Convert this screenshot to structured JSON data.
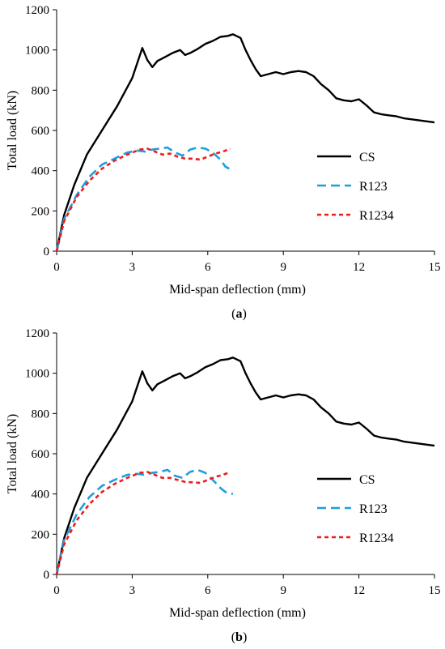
{
  "chart_data": [
    {
      "type": "line",
      "caption": "(a)",
      "caption_letter": "a",
      "xlabel": "Mid-span deflection (mm)",
      "ylabel": "Total load (kN)",
      "xlim": [
        0,
        15
      ],
      "ylim": [
        0,
        1200
      ],
      "xticks": [
        0,
        3,
        6,
        9,
        12,
        15
      ],
      "yticks": [
        0,
        200,
        400,
        600,
        800,
        1000,
        1200
      ],
      "grid": false,
      "legend_position": "right",
      "series": [
        {
          "name": "CS",
          "color": "#000000",
          "style": "solid",
          "points": [
            [
              0,
              0
            ],
            [
              0.3,
              180
            ],
            [
              0.7,
              330
            ],
            [
              1.2,
              480
            ],
            [
              1.8,
              600
            ],
            [
              2.4,
              720
            ],
            [
              3.0,
              860
            ],
            [
              3.4,
              1010
            ],
            [
              3.6,
              950
            ],
            [
              3.8,
              915
            ],
            [
              4.0,
              945
            ],
            [
              4.3,
              965
            ],
            [
              4.6,
              985
            ],
            [
              4.9,
              1000
            ],
            [
              5.1,
              975
            ],
            [
              5.3,
              985
            ],
            [
              5.6,
              1005
            ],
            [
              5.9,
              1030
            ],
            [
              6.2,
              1045
            ],
            [
              6.5,
              1065
            ],
            [
              6.8,
              1070
            ],
            [
              7.0,
              1078
            ],
            [
              7.3,
              1060
            ],
            [
              7.5,
              1000
            ],
            [
              7.7,
              950
            ],
            [
              7.9,
              905
            ],
            [
              8.1,
              870
            ],
            [
              8.4,
              880
            ],
            [
              8.7,
              890
            ],
            [
              9.0,
              880
            ],
            [
              9.3,
              890
            ],
            [
              9.6,
              895
            ],
            [
              9.9,
              890
            ],
            [
              10.2,
              870
            ],
            [
              10.5,
              830
            ],
            [
              10.8,
              800
            ],
            [
              11.1,
              760
            ],
            [
              11.4,
              750
            ],
            [
              11.7,
              745
            ],
            [
              12.0,
              755
            ],
            [
              12.3,
              725
            ],
            [
              12.6,
              690
            ],
            [
              12.9,
              680
            ],
            [
              13.2,
              675
            ],
            [
              13.5,
              670
            ],
            [
              13.8,
              660
            ],
            [
              14.1,
              655
            ],
            [
              14.4,
              650
            ],
            [
              14.7,
              645
            ],
            [
              15.0,
              640
            ]
          ]
        },
        {
          "name": "R123",
          "color": "#1f9ede",
          "style": "longdash",
          "points": [
            [
              0,
              0
            ],
            [
              0.3,
              160
            ],
            [
              0.8,
              280
            ],
            [
              1.3,
              370
            ],
            [
              1.8,
              430
            ],
            [
              2.3,
              460
            ],
            [
              2.8,
              490
            ],
            [
              3.2,
              500
            ],
            [
              3.5,
              495
            ],
            [
              3.8,
              505
            ],
            [
              4.1,
              510
            ],
            [
              4.4,
              515
            ],
            [
              4.7,
              490
            ],
            [
              5.0,
              475
            ],
            [
              5.3,
              505
            ],
            [
              5.6,
              515
            ],
            [
              5.9,
              510
            ],
            [
              6.2,
              490
            ],
            [
              6.5,
              455
            ],
            [
              6.7,
              420
            ],
            [
              7.0,
              400
            ]
          ]
        },
        {
          "name": "R1234",
          "color": "#ee1c1c",
          "style": "shortdash",
          "points": [
            [
              0,
              0
            ],
            [
              0.3,
              150
            ],
            [
              0.8,
              270
            ],
            [
              1.3,
              350
            ],
            [
              1.8,
              410
            ],
            [
              2.3,
              450
            ],
            [
              2.8,
              480
            ],
            [
              3.3,
              505
            ],
            [
              3.6,
              510
            ],
            [
              3.9,
              495
            ],
            [
              4.2,
              480
            ],
            [
              4.5,
              485
            ],
            [
              4.8,
              470
            ],
            [
              5.1,
              460
            ],
            [
              5.4,
              460
            ],
            [
              5.7,
              455
            ],
            [
              6.0,
              470
            ],
            [
              6.3,
              485
            ],
            [
              6.6,
              495
            ],
            [
              6.9,
              510
            ]
          ]
        }
      ]
    },
    {
      "type": "line",
      "caption": "(b)",
      "caption_letter": "b",
      "xlabel": "Mid-span deflection (mm)",
      "ylabel": "Total load (kN)",
      "xlim": [
        0,
        15
      ],
      "ylim": [
        0,
        1200
      ],
      "xticks": [
        0,
        3,
        6,
        9,
        12,
        15
      ],
      "yticks": [
        0,
        200,
        400,
        600,
        800,
        1000,
        1200
      ],
      "grid": false,
      "legend_position": "right",
      "series": [
        {
          "name": "CS",
          "color": "#000000",
          "style": "solid",
          "points": [
            [
              0,
              0
            ],
            [
              0.3,
              180
            ],
            [
              0.7,
              330
            ],
            [
              1.2,
              480
            ],
            [
              1.8,
              600
            ],
            [
              2.4,
              720
            ],
            [
              3.0,
              860
            ],
            [
              3.4,
              1010
            ],
            [
              3.6,
              950
            ],
            [
              3.8,
              915
            ],
            [
              4.0,
              945
            ],
            [
              4.3,
              965
            ],
            [
              4.6,
              985
            ],
            [
              4.9,
              1000
            ],
            [
              5.1,
              975
            ],
            [
              5.3,
              985
            ],
            [
              5.6,
              1005
            ],
            [
              5.9,
              1030
            ],
            [
              6.2,
              1045
            ],
            [
              6.5,
              1065
            ],
            [
              6.8,
              1070
            ],
            [
              7.0,
              1078
            ],
            [
              7.3,
              1060
            ],
            [
              7.5,
              1000
            ],
            [
              7.7,
              950
            ],
            [
              7.9,
              905
            ],
            [
              8.1,
              870
            ],
            [
              8.4,
              880
            ],
            [
              8.7,
              890
            ],
            [
              9.0,
              880
            ],
            [
              9.3,
              890
            ],
            [
              9.6,
              895
            ],
            [
              9.9,
              890
            ],
            [
              10.2,
              870
            ],
            [
              10.5,
              830
            ],
            [
              10.8,
              800
            ],
            [
              11.1,
              760
            ],
            [
              11.4,
              750
            ],
            [
              11.7,
              745
            ],
            [
              12.0,
              755
            ],
            [
              12.3,
              725
            ],
            [
              12.6,
              690
            ],
            [
              12.9,
              680
            ],
            [
              13.2,
              675
            ],
            [
              13.5,
              670
            ],
            [
              13.8,
              660
            ],
            [
              14.1,
              655
            ],
            [
              14.4,
              650
            ],
            [
              14.7,
              645
            ],
            [
              15.0,
              640
            ]
          ]
        },
        {
          "name": "R123",
          "color": "#1f9ede",
          "style": "longdash",
          "points": [
            [
              0,
              0
            ],
            [
              0.3,
              170
            ],
            [
              0.8,
              300
            ],
            [
              1.3,
              385
            ],
            [
              1.8,
              440
            ],
            [
              2.3,
              470
            ],
            [
              2.8,
              495
            ],
            [
              3.2,
              500
            ],
            [
              3.5,
              495
            ],
            [
              3.8,
              505
            ],
            [
              4.1,
              510
            ],
            [
              4.4,
              520
            ],
            [
              4.7,
              490
            ],
            [
              5.0,
              480
            ],
            [
              5.3,
              510
            ],
            [
              5.6,
              520
            ],
            [
              5.9,
              505
            ],
            [
              6.2,
              470
            ],
            [
              6.5,
              430
            ],
            [
              6.7,
              410
            ],
            [
              7.0,
              400
            ]
          ]
        },
        {
          "name": "R1234",
          "color": "#ee1c1c",
          "style": "shortdash",
          "points": [
            [
              0,
              0
            ],
            [
              0.3,
              150
            ],
            [
              0.8,
              270
            ],
            [
              1.3,
              350
            ],
            [
              1.8,
              410
            ],
            [
              2.3,
              450
            ],
            [
              2.8,
              480
            ],
            [
              3.3,
              505
            ],
            [
              3.6,
              510
            ],
            [
              3.9,
              495
            ],
            [
              4.2,
              480
            ],
            [
              4.5,
              480
            ],
            [
              4.8,
              470
            ],
            [
              5.1,
              460
            ],
            [
              5.4,
              458
            ],
            [
              5.7,
              455
            ],
            [
              6.0,
              470
            ],
            [
              6.3,
              485
            ],
            [
              6.6,
              495
            ],
            [
              6.9,
              510
            ]
          ]
        }
      ]
    }
  ]
}
